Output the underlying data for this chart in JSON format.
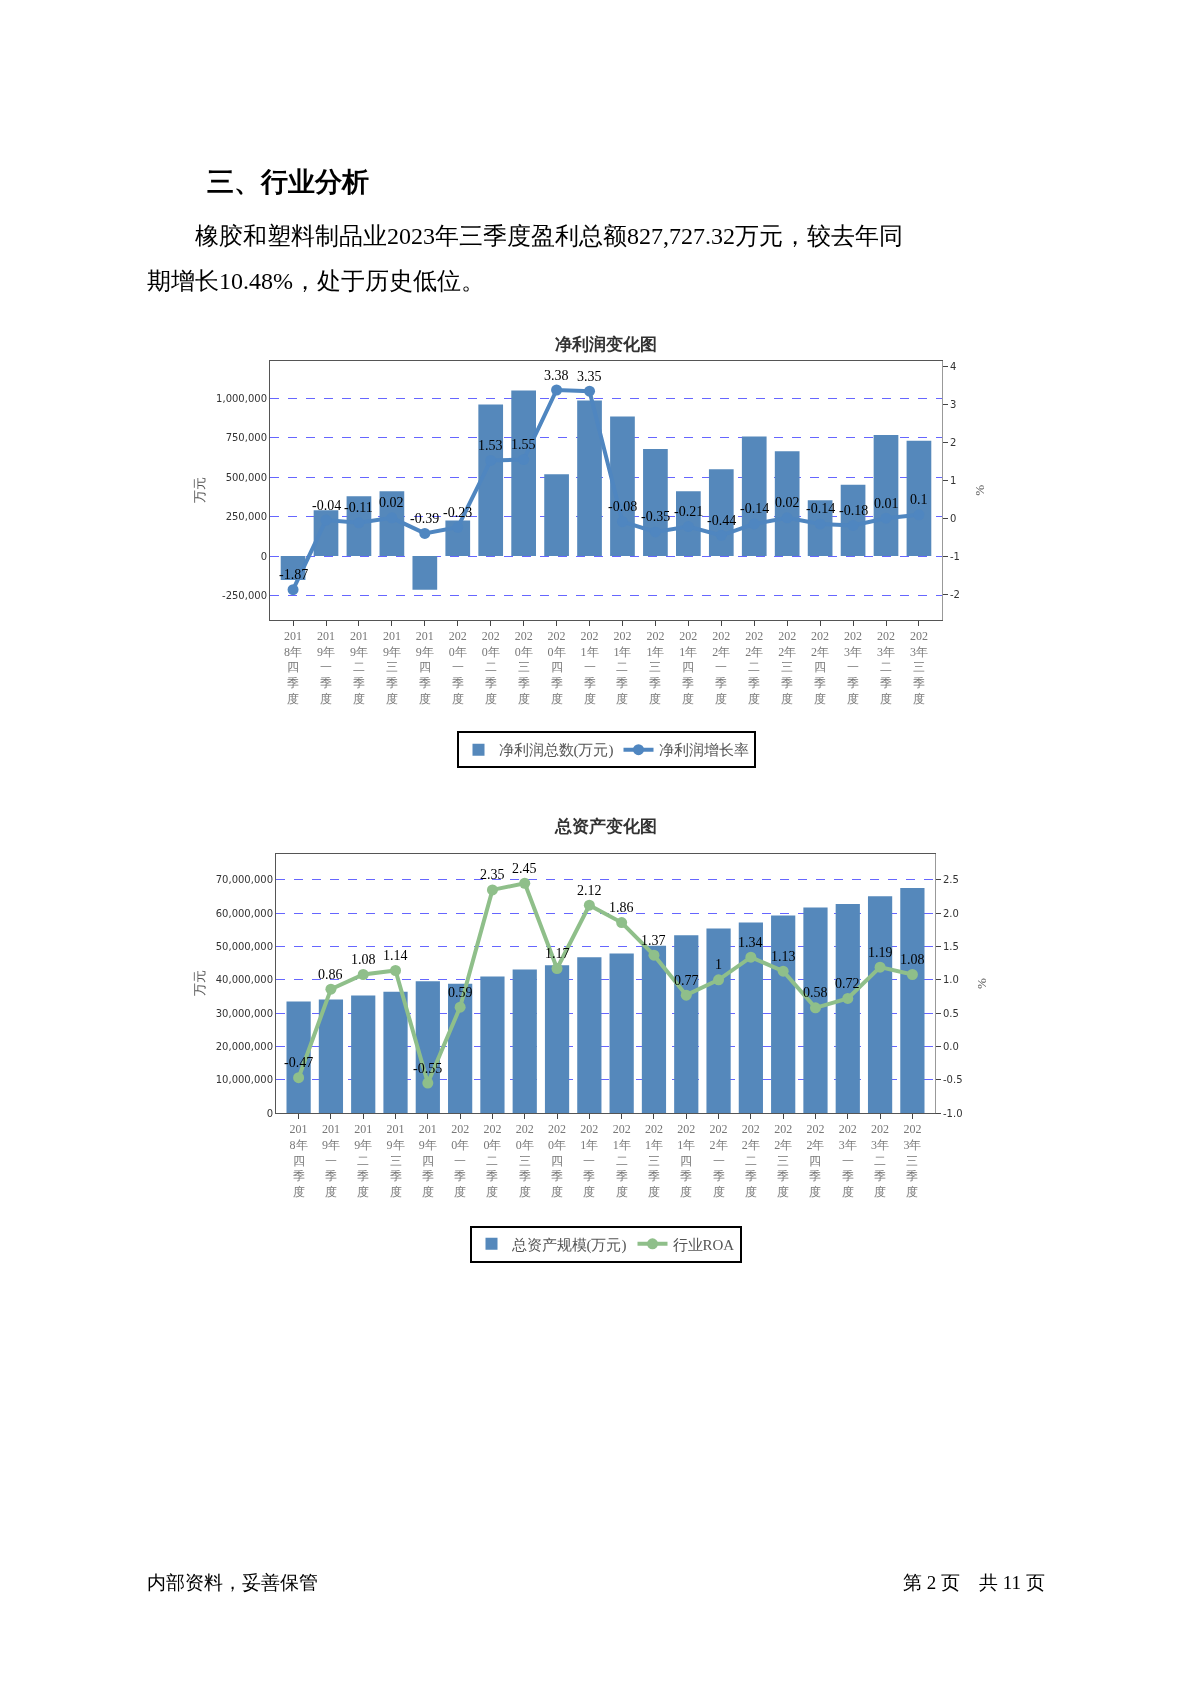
{
  "chart_data": [
    {
      "type": "bar",
      "title": "净利润变化图",
      "ylabel": "万元",
      "y2label": "%",
      "annotations": [
        "三、行业分析",
        "橡胶和塑料制品业2023年三季度盈利总额827,727.32万元，较去年同期增长10.48%，处于历史低位。"
      ],
      "categories": [
        "2018年四季度",
        "2019年一季度",
        "2019年二季度",
        "2019年三季度",
        "2019年四季度",
        "2020年一季度",
        "2020年二季度",
        "2020年三季度",
        "2020年四季度",
        "2021年一季度",
        "2021年二季度",
        "2021年三季度",
        "2021年四季度",
        "2022年一季度",
        "2022年二季度",
        "2022年三季度",
        "2022年四季度",
        "2023年一季度",
        "2023年二季度",
        "2023年三季度"
      ],
      "series": [
        {
          "name": "净利润总数(万元)",
          "color": "#5588bb",
          "values": [
            -152000,
            291000,
            380000,
            411000,
            -215000,
            225000,
            962000,
            1051000,
            519000,
            987000,
            886000,
            680000,
            411000,
            551000,
            759000,
            665000,
            354000,
            453000,
            769000,
            731000
          ]
        },
        {
          "name": "净利润增长率",
          "type": "line",
          "axis": "y2",
          "color": "#4f86c0",
          "marker": "circle",
          "values": [
            -1.87,
            -0.04,
            -0.11,
            0.02,
            -0.39,
            -0.23,
            1.53,
            1.55,
            3.38,
            3.35,
            -0.08,
            -0.35,
            -0.21,
            -0.44,
            -0.14,
            0.02,
            -0.14,
            -0.18,
            0.01,
            0.1
          ],
          "value_labels": [
            "-1.87",
            "-0.04",
            "-0.11",
            "0.02",
            "-0.39",
            "-0.23",
            "1.53",
            "1.55",
            "3.38",
            "3.35",
            "-0.08",
            "-0.35",
            "-0.21",
            "-0.44",
            "-0.14",
            "0.02",
            "-0.14",
            "-0.18",
            "0.01",
            "0.1"
          ]
        }
      ],
      "ylim": [
        -405000,
        1240000
      ],
      "yticks": [
        {
          "value": -250000,
          "label": "-250,000"
        },
        0,
        {
          "value": 250000,
          "label": "250,000"
        },
        {
          "value": 500000,
          "label": "500,000"
        },
        {
          "value": 750000,
          "label": "750,000"
        },
        {
          "value": 1000000,
          "label": "1,000,000"
        }
      ],
      "y2lim": [
        -2.66,
        4.15
      ],
      "y2ticks": [
        -2,
        -1,
        0,
        1,
        2,
        3,
        4
      ],
      "grid": "y",
      "legend": "bottom"
    },
    {
      "type": "bar",
      "title": "总资产变化图",
      "ylabel": "万元",
      "y2label": "%",
      "annotations": [
        "内部资料，妥善保管",
        "第 2 页　共 11 页"
      ],
      "categories": [
        "2018年四季度",
        "2019年一季度",
        "2019年二季度",
        "2019年三季度",
        "2019年四季度",
        "2020年一季度",
        "2020年二季度",
        "2020年三季度",
        "2020年四季度",
        "2021年一季度",
        "2021年二季度",
        "2021年三季度",
        "2021年四季度",
        "2022年一季度",
        "2022年二季度",
        "2022年三季度",
        "2022年四季度",
        "2023年一季度",
        "2023年二季度",
        "2023年三季度"
      ],
      "series": [
        {
          "name": "总资产规模(万元)",
          "color": "#5588bb",
          "values": [
            33500000,
            34100000,
            35300000,
            36400000,
            39600000,
            38800000,
            41000000,
            43100000,
            44400000,
            46800000,
            47900000,
            50200000,
            53400000,
            55400000,
            57200000,
            59300000,
            61700000,
            62800000,
            65100000,
            67600000
          ]
        },
        {
          "name": "行业ROA",
          "type": "line",
          "axis": "y2",
          "color": "#8fbf8a",
          "marker": "circle",
          "values": [
            -0.47,
            0.86,
            1.08,
            1.14,
            -0.55,
            0.59,
            2.35,
            2.45,
            1.17,
            2.12,
            1.86,
            1.37,
            0.77,
            1,
            1.34,
            1.13,
            0.58,
            0.72,
            1.19,
            1.08
          ],
          "value_labels": [
            "-0.47",
            "0.86",
            "1.08",
            "1.14",
            "-0.55",
            "0.59",
            "2.35",
            "2.45",
            "1.17",
            "2.12",
            "1.86",
            "1.37",
            "0.77",
            "1",
            "1.34",
            "1.13",
            "0.58",
            "0.72",
            "1.19",
            "1.08"
          ]
        }
      ],
      "ylim": [
        0,
        77800000
      ],
      "yticks": [
        0,
        {
          "value": 10000000,
          "label": "10,000,000"
        },
        {
          "value": 20000000,
          "label": "20,000,000"
        },
        {
          "value": 30000000,
          "label": "30,000,000"
        },
        {
          "value": 40000000,
          "label": "40,000,000"
        },
        {
          "value": 50000000,
          "label": "50,000,000"
        },
        {
          "value": 60000000,
          "label": "60,000,000"
        },
        {
          "value": 70000000,
          "label": "70,000,000"
        }
      ],
      "y2lim": [
        -1.0,
        2.89
      ],
      "y2ticks": [
        {
          "value": -1,
          "label": "-1.0"
        },
        {
          "value": -0.5,
          "label": "-0.5"
        },
        {
          "value": 0,
          "label": "0.0"
        },
        {
          "value": 0.5,
          "label": "0.5"
        },
        {
          "value": 1,
          "label": "1.0"
        },
        {
          "value": 1.5,
          "label": "1.5"
        },
        {
          "value": 2,
          "label": "2.0"
        },
        {
          "value": 2.5,
          "label": "2.5"
        }
      ],
      "grid": "y",
      "legend": "bottom"
    }
  ]
}
